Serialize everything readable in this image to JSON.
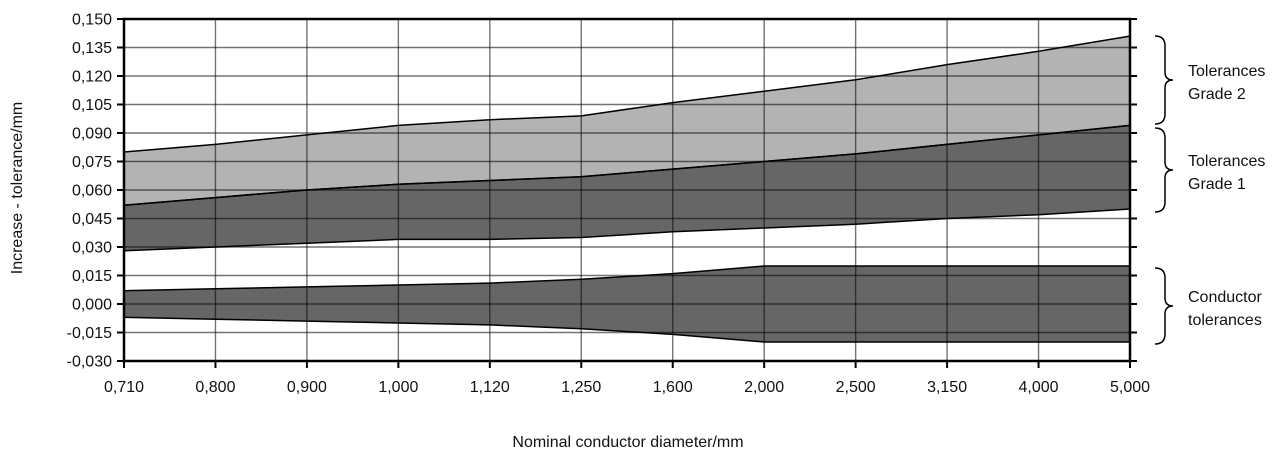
{
  "chart_data": {
    "type": "area",
    "xlabel": "Nominal conductor diameter/mm",
    "ylabel": "Increase - tolerance/mm",
    "categories": [
      "0,710",
      "0,800",
      "0,900",
      "1,000",
      "1,120",
      "1,250",
      "1,600",
      "2,000",
      "2,500",
      "3,150",
      "4,000",
      "5,000"
    ],
    "y_ticks": [
      "-0,030",
      "-0,015",
      "0,000",
      "0,015",
      "0,030",
      "0,045",
      "0,060",
      "0,075",
      "0,090",
      "0,105",
      "0,120",
      "0,135",
      "0,150"
    ],
    "ylim": [
      -0.03,
      0.15
    ],
    "grid": true,
    "bands": [
      {
        "label_lines": [
          "Tolerances",
          "Grade 2"
        ],
        "color": "#b3b3b3",
        "lower": [
          0.052,
          0.056,
          0.06,
          0.063,
          0.065,
          0.067,
          0.071,
          0.075,
          0.079,
          0.084,
          0.089,
          0.094
        ],
        "upper": [
          0.08,
          0.084,
          0.089,
          0.094,
          0.097,
          0.099,
          0.106,
          0.112,
          0.118,
          0.126,
          0.133,
          0.141
        ]
      },
      {
        "label_lines": [
          "Tolerances",
          "Grade 1"
        ],
        "color": "#666666",
        "lower": [
          0.028,
          0.03,
          0.032,
          0.034,
          0.034,
          0.035,
          0.038,
          0.04,
          0.042,
          0.045,
          0.047,
          0.05
        ],
        "upper": [
          0.052,
          0.056,
          0.06,
          0.063,
          0.065,
          0.067,
          0.071,
          0.075,
          0.079,
          0.084,
          0.089,
          0.094
        ]
      },
      {
        "label_lines": [
          "Conductor",
          "tolerances"
        ],
        "color": "#666666",
        "lower": [
          -0.007,
          -0.008,
          -0.009,
          -0.01,
          -0.011,
          -0.013,
          -0.016,
          -0.02,
          -0.02,
          -0.02,
          -0.02,
          -0.02
        ],
        "upper": [
          0.007,
          0.008,
          0.009,
          0.01,
          0.011,
          0.013,
          0.016,
          0.02,
          0.02,
          0.02,
          0.02,
          0.02
        ]
      }
    ]
  }
}
